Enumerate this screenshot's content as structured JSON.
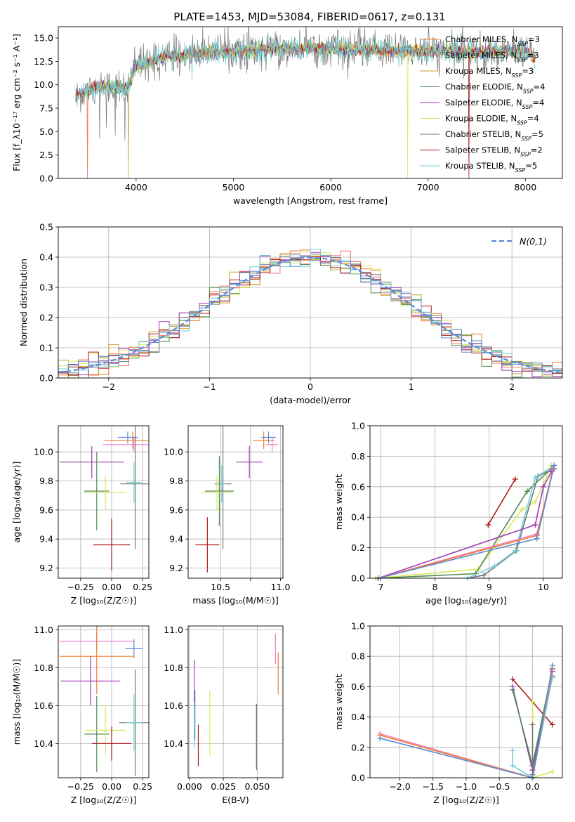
{
  "figure_title": "PLATE=1453, MJD=53084, FIBERID=0617, z=0.131",
  "colors": {
    "ch_miles": "#f07c2c",
    "sa_miles": "#ef7373",
    "kr_miles": "#c9a227",
    "ch_elodie": "#4f8a4f",
    "sa_elodie": "#a13ab5",
    "kr_elodie": "#d6e85a",
    "ch_stelib": "#777777",
    "sa_stelib": "#b01818",
    "kr_stelib": "#6fd0d8",
    "blue": "#5b87d6",
    "pink": "#ef82c8",
    "grid": "#b0b0b0"
  },
  "chart_data": [
    {
      "id": "spectrum",
      "type": "line",
      "xlabel": "wavelength [Angstrom, rest frame]",
      "ylabel": "Flux [f_λ10⁻¹⁷ erg cm⁻² s⁻¹ A⁻¹]",
      "xlim": [
        3200,
        8380
      ],
      "ylim": [
        0,
        16.2
      ],
      "xticks": [
        4000,
        5000,
        6000,
        7000,
        8000
      ],
      "yticks": [
        0.0,
        2.5,
        5.0,
        7.5,
        10.0,
        12.5,
        15.0
      ],
      "grid": false,
      "legend": "upper-right",
      "x_range": [
        3380,
        8100
      ],
      "continuum_wavelength": [
        3380,
        3500,
        3650,
        3900,
        4000,
        4300,
        4800,
        5100,
        5500,
        6000,
        6500,
        7000,
        7500,
        8000,
        8100
      ],
      "continuum_flux": [
        8.7,
        9.4,
        9.9,
        9.6,
        11.9,
        13.0,
        13.5,
        13.6,
        13.9,
        13.9,
        13.7,
        13.6,
        13.5,
        13.6,
        12.8
      ],
      "series": [
        {
          "name": "Chabrier MILES",
          "nssp": "3",
          "color_key": "ch_miles"
        },
        {
          "name": "Salpeter MILES",
          "nssp": "3",
          "color_key": "sa_miles"
        },
        {
          "name": "Kroupa MILES",
          "nssp": "3",
          "color_key": "kr_miles"
        },
        {
          "name": "Chabrier ELODIE",
          "nssp": "4",
          "color_key": "ch_elodie"
        },
        {
          "name": "Salpeter ELODIE",
          "nssp": "4",
          "color_key": "sa_elodie"
        },
        {
          "name": "Kroupa ELODIE",
          "nssp": "4",
          "color_key": "kr_elodie"
        },
        {
          "name": "Chabrier STELIB",
          "nssp": "5",
          "color_key": "ch_stelib"
        },
        {
          "name": "Salpeter STELIB",
          "nssp": "2",
          "color_key": "sa_stelib"
        },
        {
          "name": "Kroupa STELIB",
          "nssp": "5",
          "color_key": "kr_stelib"
        }
      ],
      "legend_nssp_label": "N_SSP="
    },
    {
      "id": "residuals",
      "type": "line",
      "xlabel": "(data-model)/error",
      "ylabel": "Normed distribution",
      "xlim": [
        -2.5,
        2.5
      ],
      "ylim": [
        0,
        0.5
      ],
      "xticks": [
        -2,
        -1,
        0,
        1,
        2
      ],
      "yticks": [
        0.0,
        0.1,
        0.2,
        0.3,
        0.4,
        0.5
      ],
      "grid": true,
      "legend": "upper-right",
      "bin_width": 0.1,
      "reference_curve": "N(0,1)",
      "series_color_keys": [
        "ch_miles",
        "sa_miles",
        "kr_miles",
        "ch_elodie",
        "sa_elodie",
        "kr_elodie",
        "ch_stelib",
        "sa_stelib",
        "kr_stelib",
        "blue"
      ]
    },
    {
      "id": "age_vs_Z",
      "type": "scatter",
      "xlabel": "Z [log₁₀(Z/Z☉)]",
      "ylabel": "age  [log₁₀(age/yr)]",
      "xlim": [
        -0.43,
        0.3
      ],
      "ylim": [
        9.13,
        10.18
      ],
      "xticks": [
        -0.25,
        0.0,
        0.25
      ],
      "yticks": [
        9.2,
        9.4,
        9.6,
        9.8,
        10.0
      ],
      "grid": true,
      "points": [
        {
          "c": "ch_miles",
          "x": 0.17,
          "xe": 0.23,
          "y": 10.08,
          "ye": 0.06
        },
        {
          "c": "pink",
          "x": 0.18,
          "xe": 0.25,
          "y": 10.05,
          "ye": 0.05
        },
        {
          "c": "blue",
          "x": 0.13,
          "xe": 0.08,
          "y": 10.1,
          "ye": 0.04
        },
        {
          "c": "sa_elodie",
          "x": -0.16,
          "xe": 0.26,
          "y": 9.93,
          "ye": 0.11
        },
        {
          "c": "ch_stelib",
          "x": 0.19,
          "xe": 0.12,
          "y": 9.78,
          "ye": 0.45
        },
        {
          "c": "kr_stelib",
          "x": 0.18,
          "xe": 0.06,
          "y": 9.79,
          "ye": 0.14
        },
        {
          "c": "ch_elodie",
          "x": -0.12,
          "xe": 0.1,
          "y": 9.73,
          "ye": 0.27
        },
        {
          "c": "kr_elodie",
          "x": -0.05,
          "xe": 0.17,
          "y": 9.72,
          "ye": 0.12
        },
        {
          "c": "sa_stelib",
          "x": 0.0,
          "xe": 0.15,
          "y": 9.36,
          "ye": 0.18
        }
      ]
    },
    {
      "id": "age_vs_mass",
      "type": "scatter",
      "xlabel": "mass [log₁₀(M/M☉)]",
      "ylabel": "",
      "xlim": [
        10.23,
        11.02
      ],
      "ylim": [
        9.13,
        10.18
      ],
      "xticks": [
        10.5,
        10.75,
        11.0
      ],
      "xtick_labels": [
        "10.5",
        "",
        "11.0"
      ],
      "yticks": [
        9.2,
        9.4,
        9.6,
        9.8,
        10.0
      ],
      "grid": true,
      "points": [
        {
          "c": "ch_miles",
          "x": 10.86,
          "xe": 0.09,
          "y": 10.08,
          "ye": 0.06
        },
        {
          "c": "pink",
          "x": 10.93,
          "xe": 0.05,
          "y": 10.05,
          "ye": 0.05
        },
        {
          "c": "blue",
          "x": 10.9,
          "xe": 0.06,
          "y": 10.1,
          "ye": 0.04
        },
        {
          "c": "sa_elodie",
          "x": 10.74,
          "xe": 0.11,
          "y": 9.93,
          "ye": 0.11
        },
        {
          "c": "ch_stelib",
          "x": 10.52,
          "xe": 0.07,
          "y": 9.78,
          "ye": 0.45
        },
        {
          "c": "kr_stelib",
          "x": 10.51,
          "xe": 0.04,
          "y": 9.78,
          "ye": 0.13
        },
        {
          "c": "ch_elodie",
          "x": 10.49,
          "xe": 0.12,
          "y": 9.73,
          "ye": 0.24
        },
        {
          "c": "kr_elodie",
          "x": 10.47,
          "xe": 0.13,
          "y": 9.72,
          "ye": 0.12
        },
        {
          "c": "sa_stelib",
          "x": 10.39,
          "xe": 0.1,
          "y": 9.36,
          "ye": 0.19
        }
      ]
    },
    {
      "id": "weight_vs_age",
      "type": "line",
      "xlabel": "age  [log₁₀(age/yr)]",
      "ylabel": "mass weight",
      "xlim": [
        6.8,
        10.35
      ],
      "ylim": [
        0,
        1.0
      ],
      "xticks": [
        7,
        8,
        9,
        10
      ],
      "yticks": [
        0.0,
        0.2,
        0.4,
        0.6,
        0.8,
        1.0
      ],
      "grid": true,
      "series": [
        {
          "c": "sa_stelib",
          "x": [
            8.98,
            9.48
          ],
          "y": [
            0.35,
            0.65
          ]
        },
        {
          "c": "kr_elodie",
          "x": [
            6.9,
            8.8,
            9.6,
            9.85,
            10.15
          ],
          "y": [
            0.0,
            0.06,
            0.45,
            0.5,
            0.74
          ]
        },
        {
          "c": "ch_elodie",
          "x": [
            6.95,
            8.75,
            9.7,
            10.15
          ],
          "y": [
            0.0,
            0.03,
            0.57,
            0.72
          ]
        },
        {
          "c": "ch_stelib",
          "x": [
            8.6,
            8.9,
            9.5,
            9.9,
            10.2
          ],
          "y": [
            0.0,
            0.02,
            0.18,
            0.67,
            0.72
          ]
        },
        {
          "c": "kr_stelib",
          "x": [
            8.6,
            9.1,
            9.48,
            9.85,
            10.2
          ],
          "y": [
            0.0,
            0.08,
            0.18,
            0.66,
            0.74
          ]
        },
        {
          "c": "sa_elodie",
          "x": [
            6.95,
            9.85,
            10.0,
            10.15
          ],
          "y": [
            0.0,
            0.35,
            0.6,
            0.7
          ]
        },
        {
          "c": "pink",
          "x": [
            6.95,
            9.88,
            10.18
          ],
          "y": [
            0.0,
            0.29,
            0.71
          ]
        },
        {
          "c": "ch_miles",
          "x": [
            6.95,
            9.88,
            10.18
          ],
          "y": [
            0.0,
            0.28,
            0.72
          ]
        },
        {
          "c": "blue",
          "x": [
            6.95,
            9.88,
            10.2
          ],
          "y": [
            0.0,
            0.26,
            0.74
          ]
        }
      ]
    },
    {
      "id": "mass_vs_Z",
      "type": "scatter",
      "xlabel": "Z [log₁₀(Z/Z☉)]",
      "ylabel": "mass [log₁₀(M/M☉)]",
      "xlim": [
        -0.43,
        0.3
      ],
      "ylim": [
        10.22,
        11.02
      ],
      "xticks": [
        -0.25,
        0.0,
        0.25
      ],
      "yticks": [
        10.4,
        10.6,
        10.8,
        11.0
      ],
      "grid": true,
      "points": [
        {
          "c": "pink",
          "x": -0.12,
          "xe": 0.3,
          "y": 10.94,
          "ye": 0.05
        },
        {
          "c": "blue",
          "x": 0.18,
          "xe": 0.07,
          "y": 10.9,
          "ye": 0.05
        },
        {
          "c": "ch_miles",
          "x": -0.12,
          "xe": 0.3,
          "y": 10.86,
          "ye": 0.2
        },
        {
          "c": "sa_elodie",
          "x": -0.17,
          "xe": 0.24,
          "y": 10.73,
          "ye": 0.13
        },
        {
          "c": "ch_elodie",
          "x": -0.12,
          "xe": 0.1,
          "y": 10.45,
          "ye": 0.2
        },
        {
          "c": "kr_elodie",
          "x": -0.05,
          "xe": 0.16,
          "y": 10.47,
          "ye": 0.13
        },
        {
          "c": "ch_stelib",
          "x": 0.19,
          "xe": 0.13,
          "y": 10.51,
          "ye": 0.28
        },
        {
          "c": "kr_stelib",
          "x": 0.18,
          "xe": 0.07,
          "y": 10.51,
          "ye": 0.15
        },
        {
          "c": "sa_stelib",
          "x": 0.0,
          "xe": 0.16,
          "y": 10.4,
          "ye": 0.09
        }
      ]
    },
    {
      "id": "mass_vs_ebv",
      "type": "scatter",
      "xlabel": "E(B-V)",
      "ylabel": "",
      "xlim": [
        -0.001,
        0.069
      ],
      "ylim": [
        10.22,
        11.02
      ],
      "xticks": [
        0.0,
        0.025,
        0.05
      ],
      "xtick_labels": [
        "0.000",
        "0.025",
        "0.050"
      ],
      "yticks": [
        10.4,
        10.6,
        10.8,
        11.0
      ],
      "grid": true,
      "points": [
        {
          "c": "sa_elodie",
          "x": 0.0035,
          "xe": 0,
          "y": 10.7,
          "ye": 0.14
        },
        {
          "c": "blue",
          "x": 0.004,
          "xe": 0,
          "y": 10.55,
          "ye": 0.13
        },
        {
          "c": "kr_stelib",
          "x": 0.0035,
          "xe": 0,
          "y": 10.5,
          "ye": 0.12
        },
        {
          "c": "sa_stelib",
          "x": 0.0065,
          "xe": 0,
          "y": 10.39,
          "ye": 0.11
        },
        {
          "c": "kr_elodie",
          "x": 0.015,
          "xe": 0,
          "y": 10.51,
          "ye": 0.17
        },
        {
          "c": "ch_elodie",
          "x": 0.0495,
          "xe": 0,
          "y": 10.44,
          "ye": 0.17
        },
        {
          "c": "ch_stelib",
          "x": 0.0495,
          "xe": 0,
          "y": 10.43,
          "ye": 0.17
        },
        {
          "c": "pink",
          "x": 0.0635,
          "xe": 0,
          "y": 10.9,
          "ye": 0.08
        },
        {
          "c": "ch_miles",
          "x": 0.0655,
          "xe": 0,
          "y": 10.77,
          "ye": 0.11
        }
      ]
    },
    {
      "id": "weight_vs_Z",
      "type": "line",
      "xlabel": "Z [log₁₀(Z/Z☉)]",
      "ylabel": "mass weight",
      "xlim": [
        -2.45,
        0.45
      ],
      "ylim": [
        0,
        1.0
      ],
      "xticks": [
        -2.0,
        -1.5,
        -1.0,
        -0.5,
        0.0
      ],
      "yticks": [
        0.0,
        0.2,
        0.4,
        0.6,
        0.8,
        1.0
      ],
      "grid": true,
      "series": [
        {
          "c": "sa_stelib",
          "x": [
            -0.3,
            0.3
          ],
          "y": [
            0.65,
            0.35
          ]
        },
        {
          "c": "sa_elodie",
          "x": [
            -0.3,
            0.0,
            0.3
          ],
          "y": [
            0.6,
            0.05,
            0.7
          ]
        },
        {
          "c": "ch_elodie",
          "x": [
            -0.3,
            0.0,
            0.3
          ],
          "y": [
            0.58,
            0.08,
            0.72
          ]
        },
        {
          "c": "kr_elodie",
          "x": [
            0.0,
            0.0,
            0.3
          ],
          "y": [
            0.5,
            0.0,
            0.04
          ]
        },
        {
          "c": "ch_stelib",
          "x": [
            0.0,
            0.0,
            0.3
          ],
          "y": [
            0.35,
            0.02,
            0.67
          ]
        },
        {
          "c": "kr_stelib",
          "x": [
            -0.3,
            -0.3,
            0.0,
            0.3
          ],
          "y": [
            0.18,
            0.08,
            0.0,
            0.66
          ]
        },
        {
          "c": "pink",
          "x": [
            -2.3,
            0.0,
            0.3
          ],
          "y": [
            0.29,
            0.0,
            0.71
          ]
        },
        {
          "c": "ch_miles",
          "x": [
            -2.3,
            0.0,
            0.3
          ],
          "y": [
            0.28,
            0.0,
            0.72
          ]
        },
        {
          "c": "blue",
          "x": [
            -2.3,
            0.0,
            0.3
          ],
          "y": [
            0.26,
            0.0,
            0.74
          ]
        }
      ]
    }
  ]
}
